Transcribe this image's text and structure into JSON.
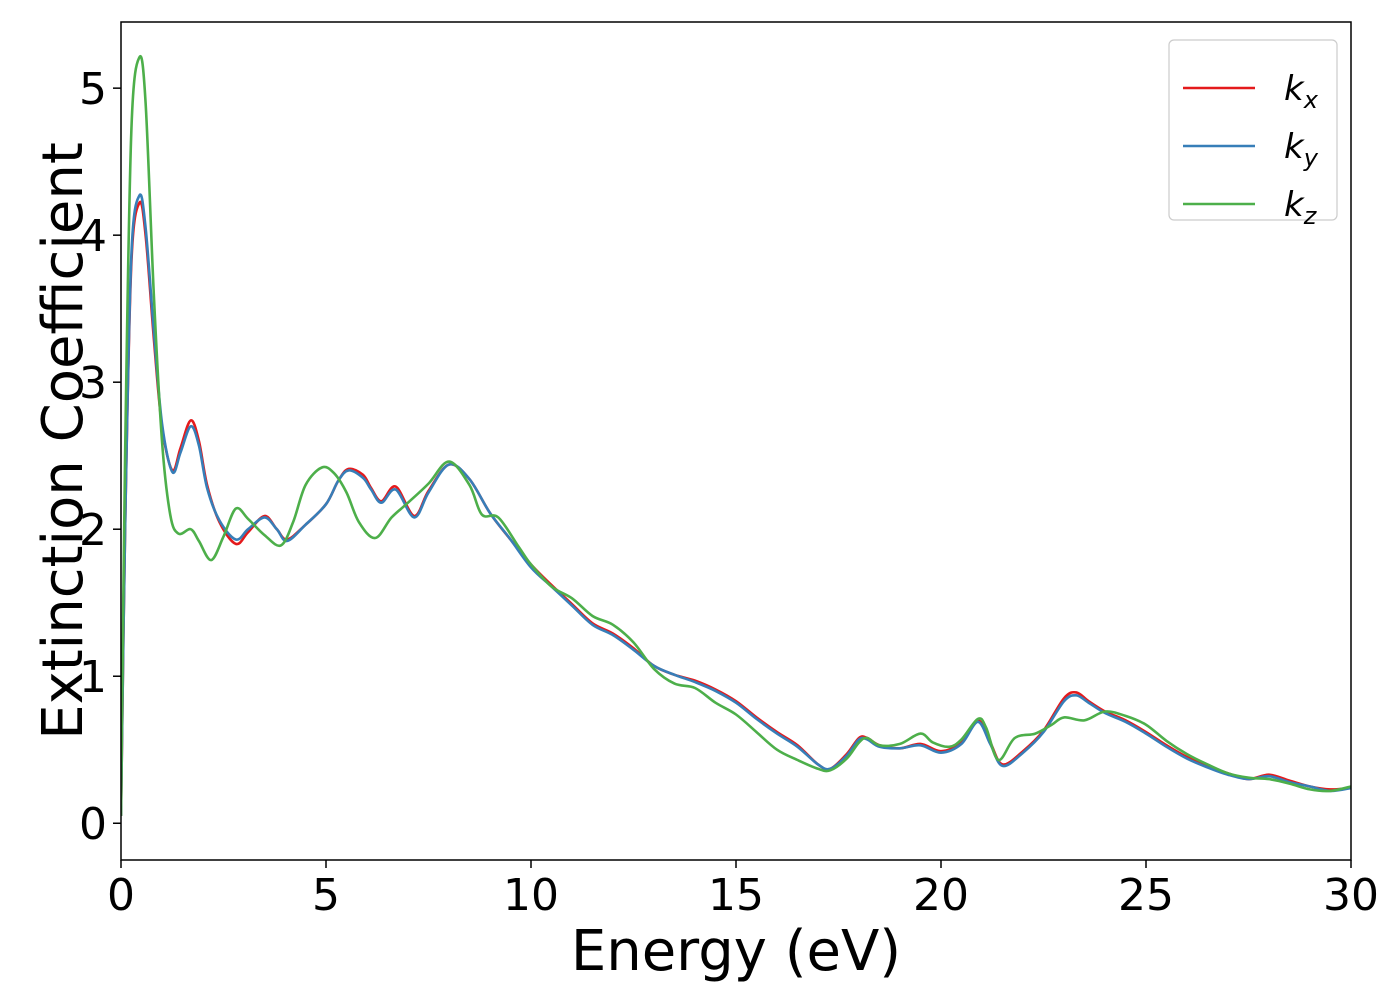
{
  "chart_data": {
    "type": "line",
    "xlabel": "Energy (eV)",
    "ylabel": "Extinction Coefficient",
    "xlim": [
      0,
      30
    ],
    "ylim": [
      -0.25,
      5.45
    ],
    "x_ticks": [
      0,
      5,
      10,
      15,
      20,
      25,
      30
    ],
    "y_ticks": [
      0,
      1,
      2,
      3,
      4,
      5
    ],
    "grid": false,
    "legend_position": "top-right",
    "series": [
      {
        "name": "k",
        "subscript": "x",
        "color": "#e41a1c",
        "points": [
          [
            0,
            0.05
          ],
          [
            0.1,
            2.0
          ],
          [
            0.25,
            3.8
          ],
          [
            0.45,
            4.22
          ],
          [
            0.6,
            4.0
          ],
          [
            0.8,
            3.3
          ],
          [
            1.0,
            2.7
          ],
          [
            1.25,
            2.4
          ],
          [
            1.45,
            2.55
          ],
          [
            1.7,
            2.74
          ],
          [
            1.9,
            2.6
          ],
          [
            2.1,
            2.3
          ],
          [
            2.4,
            2.05
          ],
          [
            2.8,
            1.9
          ],
          [
            3.1,
            1.98
          ],
          [
            3.5,
            2.09
          ],
          [
            3.8,
            2.0
          ],
          [
            4.05,
            1.93
          ],
          [
            4.5,
            2.03
          ],
          [
            5.0,
            2.17
          ],
          [
            5.3,
            2.33
          ],
          [
            5.55,
            2.41
          ],
          [
            5.9,
            2.37
          ],
          [
            6.1,
            2.28
          ],
          [
            6.35,
            2.19
          ],
          [
            6.7,
            2.29
          ],
          [
            7.15,
            2.09
          ],
          [
            7.5,
            2.26
          ],
          [
            8.0,
            2.44
          ],
          [
            8.5,
            2.34
          ],
          [
            9.0,
            2.11
          ],
          [
            9.5,
            1.93
          ],
          [
            10.0,
            1.76
          ],
          [
            10.5,
            1.62
          ],
          [
            11.0,
            1.49
          ],
          [
            11.5,
            1.36
          ],
          [
            12.0,
            1.29
          ],
          [
            12.5,
            1.19
          ],
          [
            13.0,
            1.07
          ],
          [
            13.5,
            1.01
          ],
          [
            14.0,
            0.97
          ],
          [
            14.5,
            0.91
          ],
          [
            15.0,
            0.83
          ],
          [
            15.5,
            0.72
          ],
          [
            16.0,
            0.62
          ],
          [
            16.5,
            0.53
          ],
          [
            17.0,
            0.4
          ],
          [
            17.3,
            0.37
          ],
          [
            17.7,
            0.47
          ],
          [
            18.0,
            0.58
          ],
          [
            18.2,
            0.58
          ],
          [
            18.5,
            0.53
          ],
          [
            19.0,
            0.51
          ],
          [
            19.5,
            0.54
          ],
          [
            20.0,
            0.49
          ],
          [
            20.5,
            0.55
          ],
          [
            20.9,
            0.7
          ],
          [
            21.2,
            0.55
          ],
          [
            21.5,
            0.4
          ],
          [
            22.0,
            0.49
          ],
          [
            22.5,
            0.63
          ],
          [
            23.0,
            0.85
          ],
          [
            23.3,
            0.89
          ],
          [
            23.6,
            0.83
          ],
          [
            24.0,
            0.76
          ],
          [
            24.5,
            0.7
          ],
          [
            25.0,
            0.62
          ],
          [
            25.5,
            0.53
          ],
          [
            26.0,
            0.45
          ],
          [
            26.5,
            0.39
          ],
          [
            27.0,
            0.34
          ],
          [
            27.5,
            0.3
          ],
          [
            28.0,
            0.33
          ],
          [
            28.5,
            0.29
          ],
          [
            29.0,
            0.25
          ],
          [
            29.5,
            0.23
          ],
          [
            30.0,
            0.24
          ]
        ]
      },
      {
        "name": "k",
        "subscript": "y",
        "color": "#377eb8",
        "points": [
          [
            0,
            0.05
          ],
          [
            0.1,
            2.0
          ],
          [
            0.25,
            3.85
          ],
          [
            0.45,
            4.27
          ],
          [
            0.6,
            4.05
          ],
          [
            0.8,
            3.35
          ],
          [
            1.0,
            2.72
          ],
          [
            1.25,
            2.39
          ],
          [
            1.45,
            2.52
          ],
          [
            1.7,
            2.7
          ],
          [
            1.9,
            2.57
          ],
          [
            2.1,
            2.28
          ],
          [
            2.4,
            2.06
          ],
          [
            2.8,
            1.93
          ],
          [
            3.1,
            2.0
          ],
          [
            3.5,
            2.08
          ],
          [
            3.8,
            2.0
          ],
          [
            4.05,
            1.92
          ],
          [
            4.5,
            2.03
          ],
          [
            5.0,
            2.17
          ],
          [
            5.3,
            2.33
          ],
          [
            5.55,
            2.4
          ],
          [
            5.9,
            2.35
          ],
          [
            6.1,
            2.27
          ],
          [
            6.35,
            2.18
          ],
          [
            6.7,
            2.27
          ],
          [
            7.15,
            2.08
          ],
          [
            7.5,
            2.25
          ],
          [
            8.0,
            2.44
          ],
          [
            8.5,
            2.34
          ],
          [
            9.0,
            2.11
          ],
          [
            9.5,
            1.93
          ],
          [
            10.0,
            1.74
          ],
          [
            10.5,
            1.61
          ],
          [
            11.0,
            1.48
          ],
          [
            11.5,
            1.35
          ],
          [
            12.0,
            1.28
          ],
          [
            12.5,
            1.18
          ],
          [
            13.0,
            1.07
          ],
          [
            13.5,
            1.01
          ],
          [
            14.0,
            0.96
          ],
          [
            14.5,
            0.9
          ],
          [
            15.0,
            0.82
          ],
          [
            15.5,
            0.71
          ],
          [
            16.0,
            0.61
          ],
          [
            16.5,
            0.52
          ],
          [
            17.0,
            0.4
          ],
          [
            17.3,
            0.37
          ],
          [
            17.7,
            0.46
          ],
          [
            18.0,
            0.57
          ],
          [
            18.2,
            0.57
          ],
          [
            18.5,
            0.52
          ],
          [
            19.0,
            0.51
          ],
          [
            19.5,
            0.53
          ],
          [
            20.0,
            0.48
          ],
          [
            20.5,
            0.54
          ],
          [
            20.9,
            0.69
          ],
          [
            21.2,
            0.54
          ],
          [
            21.5,
            0.39
          ],
          [
            22.0,
            0.48
          ],
          [
            22.5,
            0.62
          ],
          [
            23.0,
            0.83
          ],
          [
            23.3,
            0.87
          ],
          [
            23.6,
            0.82
          ],
          [
            24.0,
            0.75
          ],
          [
            24.5,
            0.69
          ],
          [
            25.0,
            0.61
          ],
          [
            25.5,
            0.52
          ],
          [
            26.0,
            0.44
          ],
          [
            26.5,
            0.38
          ],
          [
            27.0,
            0.33
          ],
          [
            27.5,
            0.3
          ],
          [
            28.0,
            0.32
          ],
          [
            28.5,
            0.28
          ],
          [
            29.0,
            0.25
          ],
          [
            29.5,
            0.22
          ],
          [
            30.0,
            0.24
          ]
        ]
      },
      {
        "name": "k",
        "subscript": "z",
        "color": "#4daf4a",
        "points": [
          [
            0,
            0.05
          ],
          [
            0.1,
            2.5
          ],
          [
            0.25,
            4.7
          ],
          [
            0.45,
            5.21
          ],
          [
            0.6,
            4.9
          ],
          [
            0.8,
            3.6
          ],
          [
            1.0,
            2.6
          ],
          [
            1.2,
            2.1
          ],
          [
            1.4,
            1.97
          ],
          [
            1.7,
            2.0
          ],
          [
            1.9,
            1.92
          ],
          [
            2.2,
            1.79
          ],
          [
            2.5,
            1.95
          ],
          [
            2.8,
            2.14
          ],
          [
            3.1,
            2.07
          ],
          [
            3.5,
            1.96
          ],
          [
            3.9,
            1.89
          ],
          [
            4.2,
            2.05
          ],
          [
            4.5,
            2.3
          ],
          [
            4.9,
            2.42
          ],
          [
            5.2,
            2.38
          ],
          [
            5.5,
            2.25
          ],
          [
            5.8,
            2.05
          ],
          [
            6.2,
            1.94
          ],
          [
            6.6,
            2.08
          ],
          [
            7.0,
            2.18
          ],
          [
            7.5,
            2.31
          ],
          [
            8.0,
            2.46
          ],
          [
            8.5,
            2.3
          ],
          [
            8.8,
            2.1
          ],
          [
            9.2,
            2.08
          ],
          [
            9.7,
            1.88
          ],
          [
            10.0,
            1.76
          ],
          [
            10.5,
            1.61
          ],
          [
            11.0,
            1.53
          ],
          [
            11.5,
            1.41
          ],
          [
            12.0,
            1.35
          ],
          [
            12.5,
            1.23
          ],
          [
            13.0,
            1.05
          ],
          [
            13.5,
            0.95
          ],
          [
            14.0,
            0.92
          ],
          [
            14.5,
            0.82
          ],
          [
            15.0,
            0.74
          ],
          [
            15.5,
            0.62
          ],
          [
            16.0,
            0.5
          ],
          [
            16.5,
            0.43
          ],
          [
            17.0,
            0.37
          ],
          [
            17.3,
            0.36
          ],
          [
            17.7,
            0.44
          ],
          [
            18.0,
            0.55
          ],
          [
            18.2,
            0.58
          ],
          [
            18.5,
            0.53
          ],
          [
            19.0,
            0.54
          ],
          [
            19.5,
            0.61
          ],
          [
            19.8,
            0.55
          ],
          [
            20.2,
            0.52
          ],
          [
            20.5,
            0.57
          ],
          [
            20.9,
            0.71
          ],
          [
            21.1,
            0.65
          ],
          [
            21.4,
            0.43
          ],
          [
            21.8,
            0.58
          ],
          [
            22.3,
            0.61
          ],
          [
            22.7,
            0.67
          ],
          [
            23.0,
            0.72
          ],
          [
            23.5,
            0.7
          ],
          [
            24.0,
            0.76
          ],
          [
            24.5,
            0.73
          ],
          [
            25.0,
            0.67
          ],
          [
            25.5,
            0.56
          ],
          [
            26.0,
            0.47
          ],
          [
            26.5,
            0.4
          ],
          [
            27.0,
            0.34
          ],
          [
            27.5,
            0.31
          ],
          [
            28.0,
            0.3
          ],
          [
            28.5,
            0.27
          ],
          [
            29.0,
            0.23
          ],
          [
            29.5,
            0.22
          ],
          [
            30.0,
            0.25
          ]
        ]
      }
    ]
  }
}
